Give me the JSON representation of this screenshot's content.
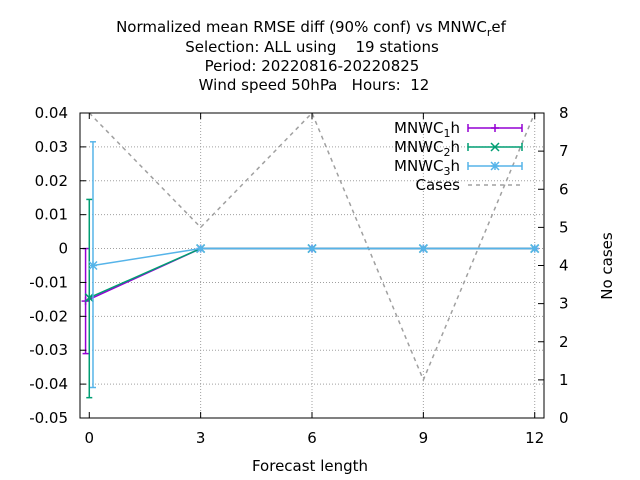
{
  "chart_data": {
    "type": "line",
    "title_lines": [
      "Normalized mean RMSE diff (90% conf) vs MNWC_ref",
      "Selection: ALL using    19 stations",
      "Period: 20220816-20220825",
      "Wind speed 50hPa   Hours:  12"
    ],
    "title_main_prefix": "Normalized mean RMSE diff (90% conf) vs MNWC",
    "title_main_sub": "r",
    "title_main_suffix": "ef",
    "xlabel": "Forecast length",
    "ylabel": "",
    "y2label": "No cases",
    "xlim": [
      -0.25,
      12.25
    ],
    "ylim": [
      -0.05,
      0.04
    ],
    "y2lim": [
      0,
      8
    ],
    "xticks": [
      0,
      3,
      6,
      9,
      12
    ],
    "xtick_labels": [
      "0",
      "3",
      "6",
      "9",
      "12"
    ],
    "yticks": [
      -0.05,
      -0.04,
      -0.03,
      -0.02,
      -0.01,
      0,
      0.01,
      0.02,
      0.03,
      0.04
    ],
    "ytick_labels": [
      "-0.05",
      "-0.04",
      "-0.03",
      "-0.02",
      "-0.01",
      "0",
      "0.01",
      "0.02",
      "0.03",
      "0.04"
    ],
    "y2ticks": [
      0,
      1,
      2,
      3,
      4,
      5,
      6,
      7,
      8
    ],
    "y2tick_labels": [
      "0",
      "1",
      "2",
      "3",
      "4",
      "5",
      "6",
      "7",
      "8"
    ],
    "grid": true,
    "legend_position": "top-right",
    "series": [
      {
        "name_prefix": "MNWC",
        "name_sub": "1",
        "name_suffix": "h",
        "color": "#9400d3",
        "marker": "plus",
        "x": [
          -0.1,
          3,
          6,
          9,
          12
        ],
        "y": [
          -0.0155,
          0,
          0,
          0,
          0
        ],
        "err_low": [
          -0.031,
          0,
          0,
          0,
          0
        ],
        "err_high": [
          0,
          0,
          0,
          0,
          0
        ]
      },
      {
        "name_prefix": "MNWC",
        "name_sub": "2",
        "name_suffix": "h",
        "color": "#009e73",
        "marker": "cross",
        "x": [
          0,
          3,
          6,
          9,
          12
        ],
        "y": [
          -0.0145,
          0,
          0,
          0,
          0
        ],
        "err_low": [
          -0.044,
          0,
          0,
          0,
          0
        ],
        "err_high": [
          0.0145,
          0,
          0,
          0,
          0
        ]
      },
      {
        "name_prefix": "MNWC",
        "name_sub": "3",
        "name_suffix": "h",
        "color": "#56b4e9",
        "marker": "star",
        "x": [
          0.1,
          3,
          6,
          9,
          12
        ],
        "y": [
          -0.005,
          0,
          0,
          0,
          0
        ],
        "err_low": [
          -0.041,
          0,
          0,
          0,
          0
        ],
        "err_high": [
          0.0315,
          0,
          0,
          0,
          0
        ]
      }
    ],
    "cases": {
      "name": "Cases",
      "color": "#a0a0a0",
      "x": [
        0,
        3,
        6,
        9,
        12
      ],
      "y": [
        8,
        5,
        8,
        1,
        8
      ]
    }
  }
}
